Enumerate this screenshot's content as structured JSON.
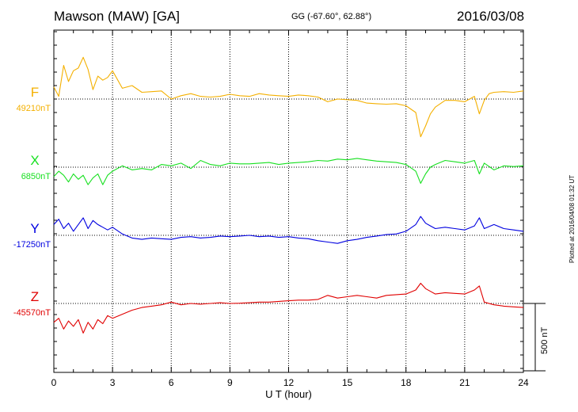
{
  "header": {
    "title": "Mawson (MAW)  [GA]",
    "coords": "GG (-67.60°,  62.88°)",
    "date": "2016/03/08"
  },
  "footer": "Plotted at 2016/04/08 01:32 UT",
  "chart_data": {
    "type": "line",
    "xlabel": "U T (hour)",
    "xlim": [
      0,
      24
    ],
    "xticks": [
      "0",
      "3",
      "6",
      "9",
      "12",
      "15",
      "18",
      "21",
      "24"
    ],
    "scale_bar": {
      "label": "500 nT",
      "value_nT": 500
    },
    "grid": true,
    "series": [
      {
        "name": "F",
        "baseline_label": "49210nT",
        "baseline_nT": 49210,
        "color": "#f4b000",
        "x": [
          0,
          0.25,
          0.5,
          0.75,
          1,
          1.25,
          1.5,
          1.75,
          2,
          2.25,
          2.5,
          2.75,
          3,
          3.5,
          4,
          4.5,
          5,
          5.5,
          6,
          6.5,
          7,
          7.5,
          8,
          8.5,
          9,
          9.5,
          10,
          10.5,
          11,
          11.5,
          12,
          12.5,
          13,
          13.5,
          14,
          14.5,
          15,
          15.5,
          16,
          16.5,
          17,
          17.5,
          18,
          18.5,
          18.75,
          19,
          19.25,
          19.5,
          20,
          20.5,
          21,
          21.5,
          21.75,
          22,
          22.25,
          22.5,
          23,
          23.5,
          24
        ],
        "y": [
          49300,
          49230,
          49460,
          49340,
          49420,
          49440,
          49520,
          49430,
          49280,
          49380,
          49350,
          49370,
          49420,
          49290,
          49310,
          49260,
          49265,
          49270,
          49210,
          49235,
          49250,
          49230,
          49225,
          49230,
          49245,
          49235,
          49230,
          49250,
          49240,
          49235,
          49230,
          49240,
          49235,
          49225,
          49190,
          49210,
          49205,
          49200,
          49180,
          49175,
          49172,
          49175,
          49160,
          49110,
          48930,
          49010,
          49100,
          49150,
          49200,
          49200,
          49190,
          49230,
          49100,
          49200,
          49250,
          49260,
          49265,
          49260,
          49270
        ]
      },
      {
        "name": "X",
        "baseline_label": "6850nT",
        "baseline_nT": 6850,
        "color": "#17e020",
        "x": [
          0,
          0.25,
          0.5,
          0.75,
          1,
          1.25,
          1.5,
          1.75,
          2,
          2.25,
          2.5,
          2.75,
          3,
          3.5,
          4,
          4.5,
          5,
          5.5,
          6,
          6.5,
          7,
          7.5,
          8,
          8.5,
          9,
          9.5,
          10,
          10.5,
          11,
          11.5,
          12,
          12.5,
          13,
          13.5,
          14,
          14.5,
          15,
          15.5,
          16,
          16.5,
          17,
          17.5,
          18,
          18.5,
          18.75,
          19,
          19.25,
          19.5,
          20,
          20.5,
          21,
          21.5,
          21.75,
          22,
          22.5,
          23,
          23.5,
          24
        ],
        "y": [
          6780,
          6820,
          6790,
          6740,
          6800,
          6760,
          6790,
          6720,
          6770,
          6800,
          6720,
          6790,
          6820,
          6860,
          6830,
          6840,
          6830,
          6870,
          6860,
          6880,
          6840,
          6900,
          6870,
          6860,
          6880,
          6875,
          6875,
          6880,
          6885,
          6870,
          6880,
          6885,
          6890,
          6900,
          6895,
          6910,
          6905,
          6915,
          6905,
          6895,
          6890,
          6885,
          6870,
          6820,
          6730,
          6800,
          6850,
          6870,
          6900,
          6890,
          6880,
          6900,
          6800,
          6880,
          6830,
          6860,
          6855,
          6860
        ]
      },
      {
        "name": "Y",
        "baseline_label": "-17250nT",
        "baseline_nT": -17250,
        "color": "#0000e0",
        "x": [
          0,
          0.25,
          0.5,
          0.75,
          1,
          1.25,
          1.5,
          1.75,
          2,
          2.25,
          2.5,
          2.75,
          3,
          3.5,
          4,
          4.5,
          5,
          5.5,
          6,
          6.5,
          7,
          7.5,
          8,
          8.5,
          9,
          9.5,
          10,
          10.5,
          11,
          11.5,
          12,
          12.5,
          13,
          13.5,
          14,
          14.5,
          15,
          15.5,
          16,
          16.5,
          17,
          17.5,
          18,
          18.5,
          18.75,
          19,
          19.25,
          19.5,
          20,
          20.5,
          21,
          21.5,
          21.75,
          22,
          22.5,
          23,
          23.5,
          24
        ],
        "y": [
          -17170,
          -17130,
          -17200,
          -17160,
          -17220,
          -17170,
          -17120,
          -17200,
          -17140,
          -17170,
          -17190,
          -17210,
          -17190,
          -17240,
          -17270,
          -17280,
          -17270,
          -17275,
          -17280,
          -17265,
          -17260,
          -17270,
          -17265,
          -17255,
          -17260,
          -17255,
          -17250,
          -17260,
          -17255,
          -17265,
          -17260,
          -17270,
          -17275,
          -17290,
          -17300,
          -17310,
          -17290,
          -17280,
          -17265,
          -17255,
          -17245,
          -17240,
          -17220,
          -17170,
          -17110,
          -17160,
          -17180,
          -17200,
          -17190,
          -17200,
          -17210,
          -17180,
          -17120,
          -17200,
          -17170,
          -17200,
          -17210,
          -17220
        ]
      },
      {
        "name": "Z",
        "baseline_label": "-45570nT",
        "baseline_nT": -45570,
        "color": "#e00000",
        "x": [
          0,
          0.25,
          0.5,
          0.75,
          1,
          1.25,
          1.5,
          1.75,
          2,
          2.25,
          2.5,
          2.75,
          3,
          3.5,
          4,
          4.5,
          5,
          5.5,
          6,
          6.5,
          7,
          7.5,
          8,
          8.5,
          9,
          9.5,
          10,
          10.5,
          11,
          11.5,
          12,
          12.5,
          13,
          13.5,
          14,
          14.5,
          15,
          15.5,
          16,
          16.5,
          17,
          17.5,
          18,
          18.5,
          18.75,
          19,
          19.25,
          19.5,
          20,
          20.5,
          21,
          21.5,
          21.75,
          22,
          22.5,
          23,
          23.5,
          24
        ],
        "y": [
          -45710,
          -45680,
          -45760,
          -45700,
          -45740,
          -45690,
          -45790,
          -45710,
          -45760,
          -45690,
          -45720,
          -45660,
          -45680,
          -45650,
          -45620,
          -45600,
          -45590,
          -45580,
          -45560,
          -45580,
          -45570,
          -45575,
          -45570,
          -45565,
          -45570,
          -45568,
          -45565,
          -45560,
          -45560,
          -45555,
          -45550,
          -45545,
          -45545,
          -45540,
          -45510,
          -45530,
          -45520,
          -45510,
          -45520,
          -45530,
          -45510,
          -45505,
          -45500,
          -45470,
          -45420,
          -45460,
          -45480,
          -45500,
          -45490,
          -45495,
          -45500,
          -45470,
          -45440,
          -45560,
          -45580,
          -45590,
          -45595,
          -45600
        ]
      }
    ]
  }
}
